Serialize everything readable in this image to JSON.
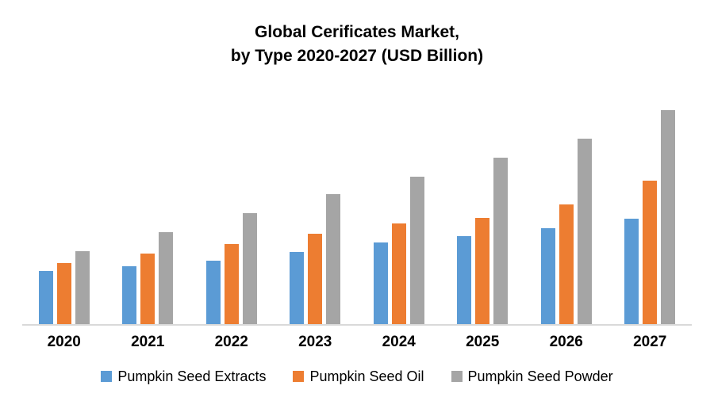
{
  "title": {
    "line1": "Global Cerificates Market,",
    "line2": "by Type 2020-2027 (USD Billion)"
  },
  "chart_data": {
    "type": "bar",
    "title": "Global Cerificates Market, by Type 2020-2027 (USD Billion)",
    "categories": [
      "2020",
      "2021",
      "2022",
      "2023",
      "2024",
      "2025",
      "2026",
      "2027"
    ],
    "series": [
      {
        "name": "Pumpkin Seed Extracts",
        "color": "#5B9BD5",
        "values": [
          0.67,
          0.73,
          0.8,
          0.91,
          1.03,
          1.11,
          1.21,
          1.33
        ]
      },
      {
        "name": "Pumpkin Seed Oil",
        "color": "#ED7D31",
        "values": [
          0.77,
          0.89,
          1.01,
          1.14,
          1.27,
          1.34,
          1.51,
          1.81
        ]
      },
      {
        "name": "Pumpkin Seed Powder",
        "color": "#A5A5A5",
        "values": [
          0.92,
          1.16,
          1.4,
          1.64,
          1.86,
          2.1,
          2.34,
          2.7
        ]
      }
    ],
    "xlabel": "",
    "ylabel": "",
    "ylim": [
      0,
      3
    ],
    "grid": false,
    "legend_position": "bottom",
    "y_axis_labels_visible": false
  }
}
